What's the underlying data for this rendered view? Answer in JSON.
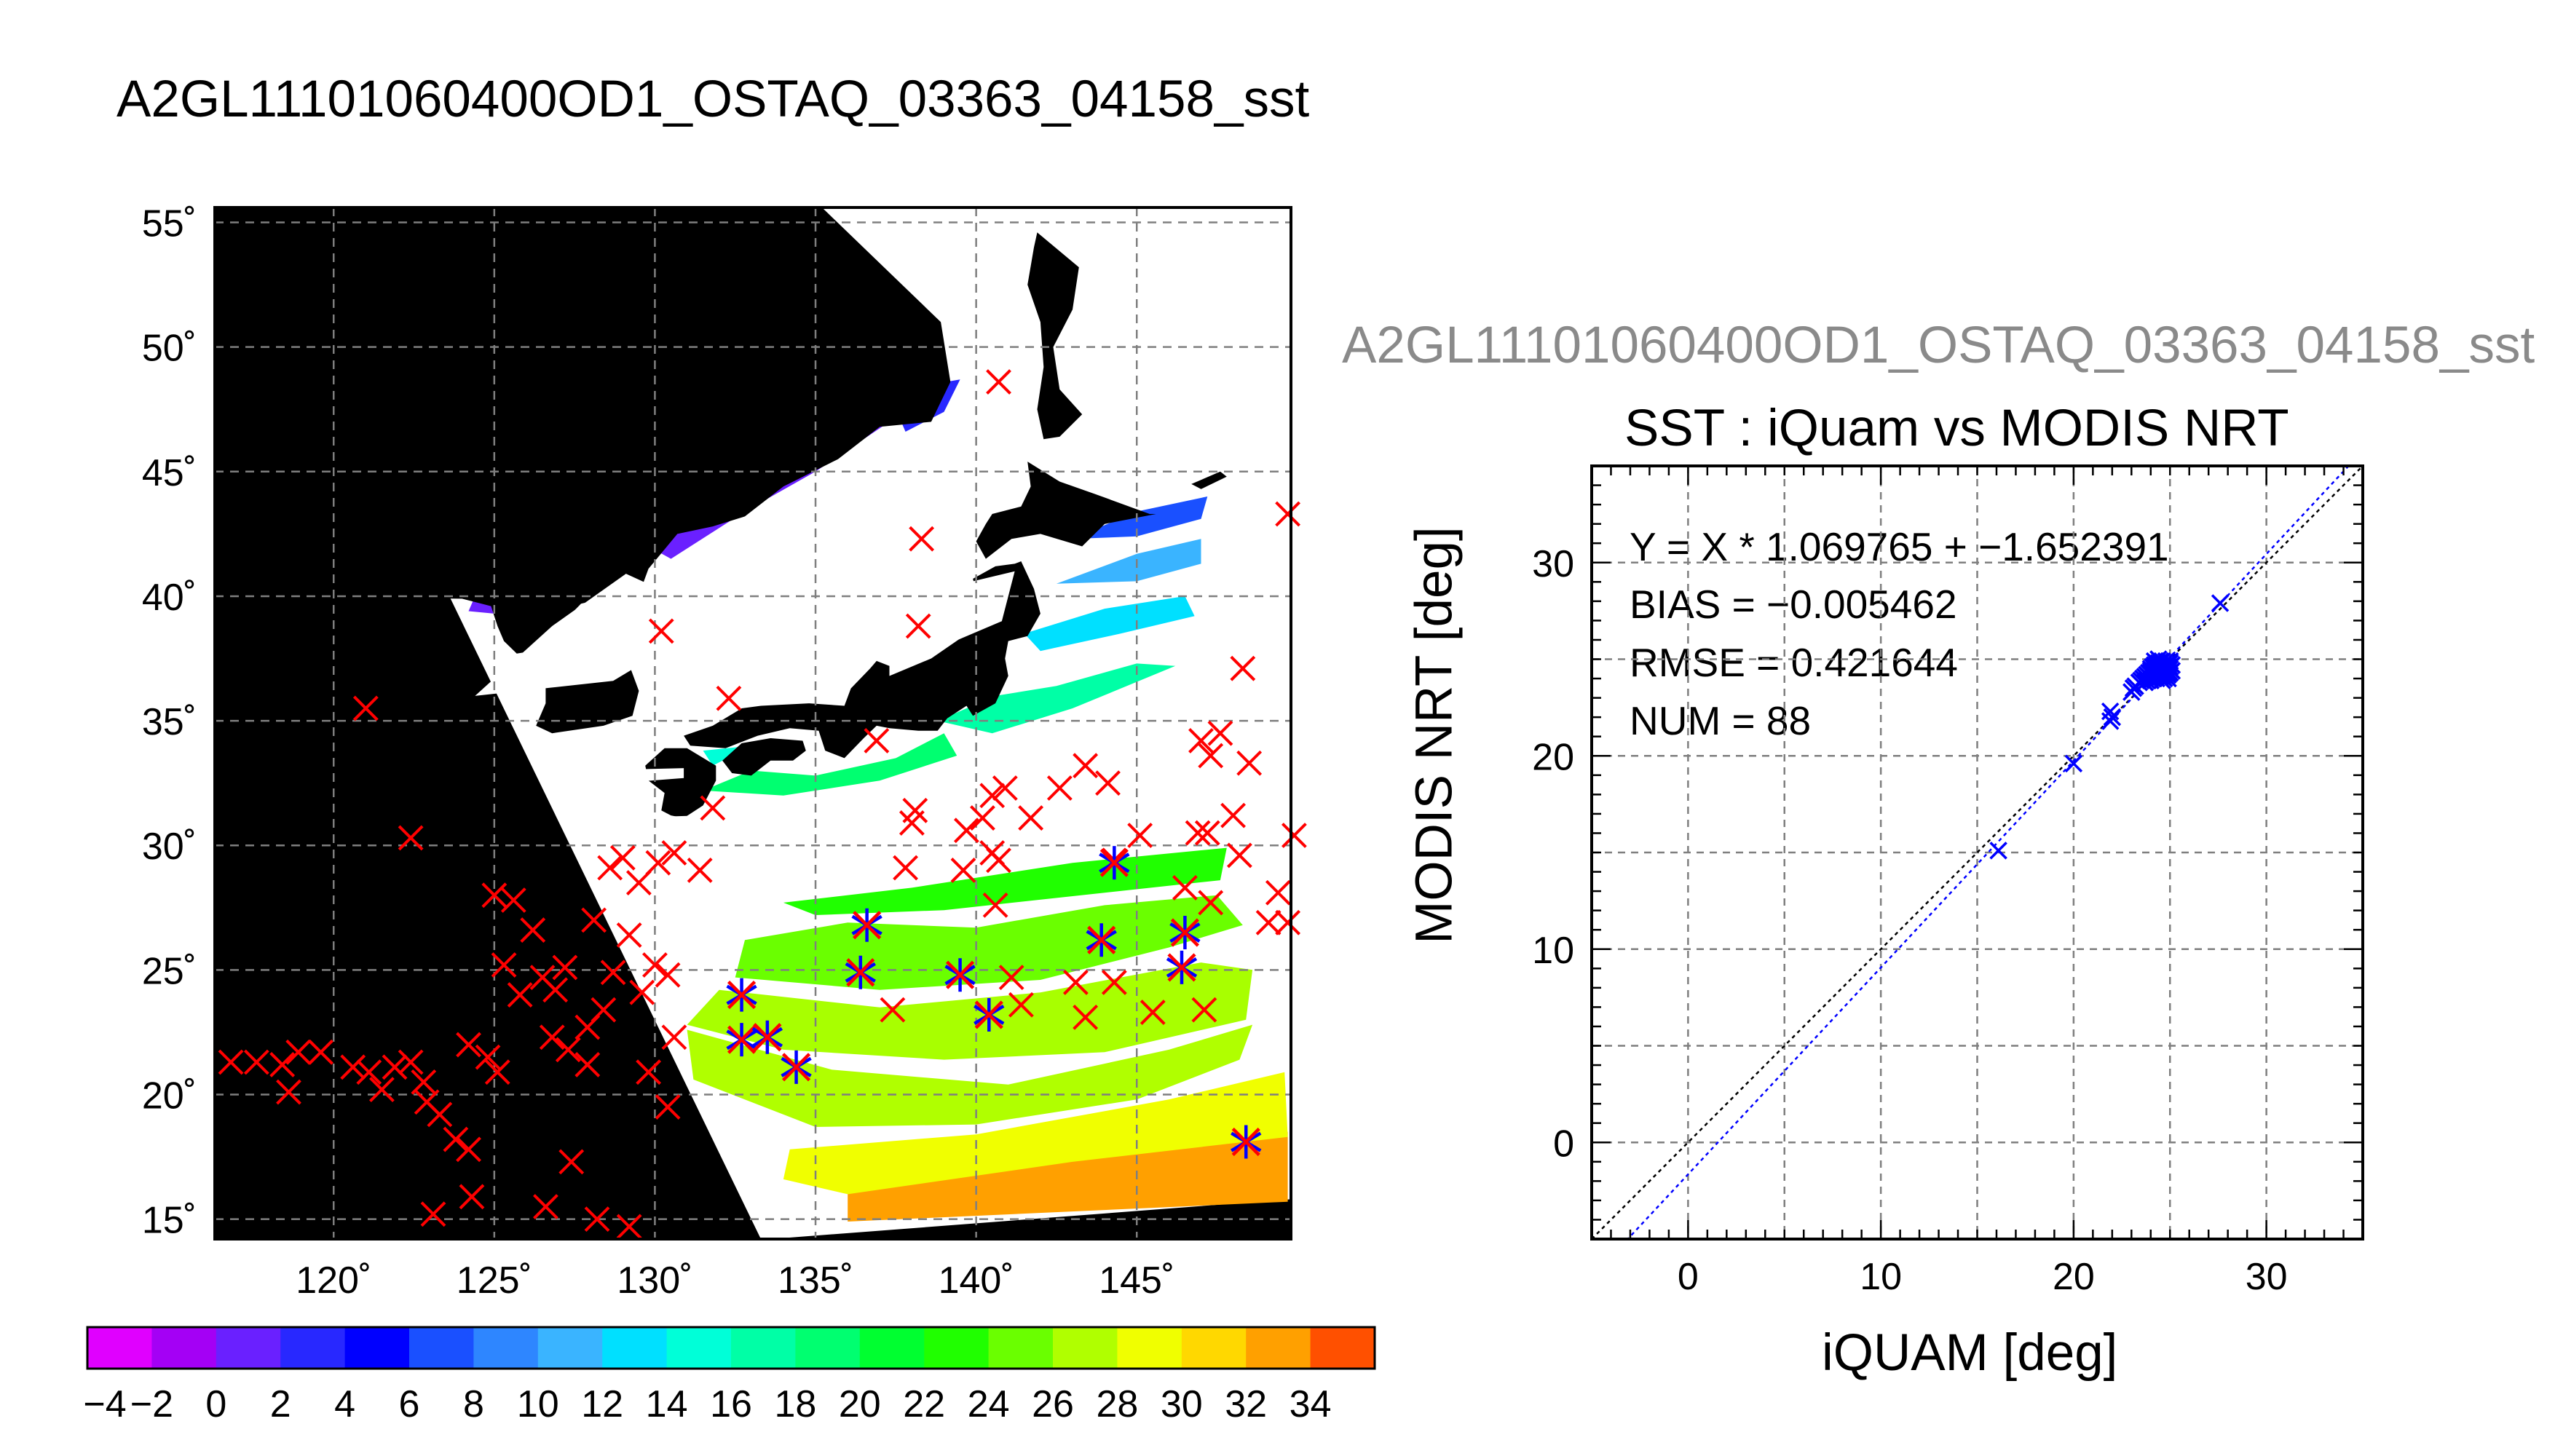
{
  "window": {
    "title": "A2GL11101060400OD1_OSTAQ_03363_04158_sst"
  },
  "colors": {
    "grid": "#7f7f7f",
    "red_marker": "#ff0000",
    "blue_marker": "#0000ff",
    "fit_line": "#0000ff",
    "identity_line": "#000000",
    "header_gray": "#8a8a8a"
  },
  "chart_data": [
    {
      "type": "map",
      "title": "A2GL11101060400OD1_OSTAQ_03363_04158_sst",
      "x_ticks": [
        "120˚",
        "125˚",
        "130˚",
        "135˚",
        "140˚",
        "145˚"
      ],
      "x_tick_values": [
        120,
        125,
        130,
        135,
        140,
        145
      ],
      "y_ticks": [
        "55˚",
        "50˚",
        "45˚",
        "40˚",
        "35˚",
        "30˚",
        "25˚",
        "20˚",
        "15˚"
      ],
      "y_tick_values": [
        55,
        50,
        45,
        40,
        35,
        30,
        25,
        20,
        15
      ],
      "xlim": [
        116.3,
        149.8
      ],
      "ylim": [
        14.2,
        55.6
      ],
      "grid": true,
      "swath_corners_lonlat": [
        [
          135.2,
          55.6
        ],
        [
          149.8,
          55.6
        ],
        [
          149.8,
          15.8
        ],
        [
          133.6,
          14.2
        ],
        [
          133.3,
          14.2
        ],
        [
          123.6,
          40.0
        ],
        [
          124.4,
          40.0
        ]
      ],
      "colorbar": {
        "min": -4,
        "max": 36,
        "step": 2,
        "tick_labels": [
          "−4",
          "−2",
          "0",
          "2",
          "4",
          "6",
          "8",
          "10",
          "12",
          "14",
          "16",
          "18",
          "20",
          "22",
          "24",
          "26",
          "28",
          "30",
          "32",
          "34"
        ],
        "colors": [
          "#e000ff",
          "#a400f5",
          "#6a20ff",
          "#2828ff",
          "#0000ff",
          "#1a50ff",
          "#2e86ff",
          "#3ab4ff",
          "#00e0ff",
          "#00ffd8",
          "#00ffa6",
          "#00ff70",
          "#00ff30",
          "#20ff00",
          "#6aff00",
          "#b0ff00",
          "#f0ff00",
          "#ffd800",
          "#ffa000",
          "#ff5000"
        ]
      },
      "points": {
        "iquam_stations": [
          [
            121.0,
            35.5
          ],
          [
            122.4,
            30.3
          ],
          [
            116.8,
            21.3
          ],
          [
            117.6,
            21.3
          ],
          [
            118.4,
            21.2
          ],
          [
            118.9,
            21.7
          ],
          [
            119.6,
            21.7
          ],
          [
            118.6,
            20.1
          ],
          [
            120.6,
            21.1
          ],
          [
            121.1,
            20.9
          ],
          [
            121.5,
            20.2
          ],
          [
            121.9,
            21.1
          ],
          [
            122.4,
            21.3
          ],
          [
            122.8,
            20.5
          ],
          [
            122.9,
            19.7
          ],
          [
            123.3,
            19.2
          ],
          [
            123.8,
            18.2
          ],
          [
            124.2,
            17.8
          ],
          [
            124.2,
            22.0
          ],
          [
            124.8,
            21.5
          ],
          [
            125.1,
            20.9
          ],
          [
            125.3,
            25.2
          ],
          [
            125.8,
            24.0
          ],
          [
            125.0,
            28.0
          ],
          [
            125.6,
            27.8
          ],
          [
            126.2,
            26.6
          ],
          [
            126.5,
            24.7
          ],
          [
            126.9,
            24.2
          ],
          [
            127.2,
            25.1
          ],
          [
            126.8,
            22.3
          ],
          [
            127.3,
            21.8
          ],
          [
            127.9,
            22.7
          ],
          [
            128.4,
            23.4
          ],
          [
            127.9,
            21.2
          ],
          [
            128.7,
            24.9
          ],
          [
            128.1,
            27.0
          ],
          [
            128.6,
            29.1
          ],
          [
            129.0,
            29.5
          ],
          [
            129.5,
            28.5
          ],
          [
            129.2,
            26.4
          ],
          [
            130.0,
            25.2
          ],
          [
            129.6,
            24.1
          ],
          [
            130.4,
            24.8
          ],
          [
            130.6,
            22.3
          ],
          [
            129.8,
            20.9
          ],
          [
            130.4,
            19.5
          ],
          [
            124.3,
            15.9
          ],
          [
            123.1,
            15.2
          ],
          [
            126.6,
            15.5
          ],
          [
            127.4,
            17.3
          ],
          [
            128.2,
            15.0
          ],
          [
            129.2,
            14.7
          ],
          [
            130.1,
            29.3
          ],
          [
            130.6,
            29.7
          ],
          [
            131.4,
            29.0
          ],
          [
            130.2,
            38.6
          ],
          [
            132.3,
            35.9
          ],
          [
            136.9,
            34.2
          ],
          [
            138.3,
            42.3
          ],
          [
            138.2,
            38.8
          ],
          [
            140.7,
            48.6
          ],
          [
            138.1,
            31.4
          ],
          [
            138.0,
            30.9
          ],
          [
            139.7,
            30.6
          ],
          [
            140.2,
            31.1
          ],
          [
            140.5,
            32.0
          ],
          [
            140.7,
            29.4
          ],
          [
            140.5,
            29.7
          ],
          [
            140.9,
            32.3
          ],
          [
            141.7,
            31.1
          ],
          [
            142.6,
            32.3
          ],
          [
            143.4,
            33.2
          ],
          [
            144.1,
            32.5
          ],
          [
            144.3,
            29.4
          ],
          [
            145.1,
            30.4
          ],
          [
            146.5,
            28.3
          ],
          [
            146.9,
            30.5
          ],
          [
            147.0,
            34.2
          ],
          [
            147.3,
            33.6
          ],
          [
            147.6,
            34.5
          ],
          [
            147.2,
            30.5
          ],
          [
            148.5,
            33.3
          ],
          [
            148.0,
            31.2
          ],
          [
            148.2,
            29.6
          ],
          [
            149.4,
            28.1
          ],
          [
            149.1,
            26.9
          ],
          [
            149.7,
            26.9
          ],
          [
            149.9,
            30.4
          ],
          [
            149.7,
            43.3
          ],
          [
            148.3,
            37.1
          ],
          [
            143.1,
            24.5
          ],
          [
            143.4,
            23.1
          ],
          [
            144.3,
            24.5
          ],
          [
            145.5,
            23.3
          ],
          [
            147.1,
            23.4
          ],
          [
            147.3,
            27.7
          ],
          [
            141.1,
            24.7
          ],
          [
            140.6,
            27.6
          ],
          [
            137.4,
            23.4
          ],
          [
            131.8,
            31.5
          ],
          [
            141.4,
            23.6
          ],
          [
            137.8,
            29.1
          ],
          [
            139.6,
            29.0
          ]
        ],
        "matched_pairs": [
          [
            132.7,
            24.0
          ],
          [
            132.7,
            22.2
          ],
          [
            133.5,
            22.3
          ],
          [
            134.4,
            21.1
          ],
          [
            136.4,
            24.9
          ],
          [
            136.6,
            26.8
          ],
          [
            139.5,
            24.8
          ],
          [
            140.4,
            23.2
          ],
          [
            143.9,
            26.2
          ],
          [
            144.3,
            29.3
          ],
          [
            146.5,
            26.5
          ],
          [
            146.4,
            25.1
          ],
          [
            148.4,
            18.1
          ]
        ]
      }
    },
    {
      "type": "scatter",
      "header": "A2GL11101060400OD1_OSTAQ_03363_04158_sst",
      "title": "SST : iQuam vs MODIS NRT",
      "xlabel": "iQUAM [deg]",
      "ylabel": "MODIS NRT [deg]",
      "xlim": [
        -5,
        35
      ],
      "ylim": [
        -5,
        35
      ],
      "x_ticks": [
        "0",
        "10",
        "20",
        "30"
      ],
      "x_tick_values": [
        0,
        10,
        20,
        30
      ],
      "y_ticks": [
        "0",
        "10",
        "20",
        "30"
      ],
      "y_tick_values": [
        0,
        10,
        20,
        30
      ],
      "grid": true,
      "stats": {
        "regression": "Y = X * 1.069765 + −1.652391",
        "bias": "BIAS = −0.005462",
        "rmse": "RMSE = 0.421644",
        "num": "NUM = 88"
      },
      "fit": {
        "slope": 1.069765,
        "intercept": -1.652391
      },
      "identity_line": {
        "slope": 1,
        "intercept": 0
      },
      "series": [
        {
          "x": [
            16.1,
            20.0,
            21.9,
            22.0,
            21.9,
            23.0,
            23.1,
            23.2,
            23.4,
            23.5,
            23.6,
            23.7,
            23.8,
            23.9,
            24.0,
            24.0,
            24.1,
            24.1,
            24.2,
            24.2,
            24.3,
            24.3,
            24.4,
            24.4,
            24.5,
            24.5,
            24.5,
            24.6,
            24.6,
            24.6,
            24.7,
            24.7,
            24.7,
            24.8,
            24.8,
            24.8,
            24.9,
            24.9,
            24.9,
            25.0,
            25.0,
            25.0,
            25.1,
            25.1,
            24.3,
            24.4,
            24.6,
            24.7,
            24.8,
            24.9,
            24.2,
            24.5,
            24.6,
            24.8,
            27.6,
            24.9,
            24.7,
            24.5,
            24.3,
            24.1,
            23.9,
            23.6,
            24.2,
            24.4,
            24.6,
            24.8,
            25.0,
            24.6,
            24.4,
            24.2,
            24.0,
            23.8,
            24.5,
            24.7,
            24.9,
            24.3,
            24.1,
            23.7,
            24.6,
            24.8,
            24.0,
            24.4,
            24.2,
            25.0,
            24.6,
            24.7,
            24.5,
            24.9
          ],
          "y": [
            15.1,
            19.6,
            21.8,
            22.0,
            22.3,
            23.3,
            23.5,
            23.6,
            23.8,
            23.9,
            24.0,
            24.1,
            24.2,
            24.3,
            24.3,
            24.5,
            24.4,
            24.6,
            24.3,
            24.6,
            24.2,
            24.7,
            24.3,
            24.8,
            24.1,
            24.5,
            24.9,
            24.2,
            24.6,
            24.9,
            24.3,
            24.6,
            24.8,
            24.1,
            24.5,
            24.9,
            24.2,
            24.6,
            24.8,
            24.3,
            24.5,
            24.9,
            24.4,
            24.7,
            24.0,
            25.0,
            23.9,
            24.2,
            24.4,
            24.0,
            24.5,
            24.8,
            24.4,
            24.7,
            27.9,
            24.2,
            24.0,
            24.4,
            24.8,
            24.3,
            24.1,
            24.0,
            24.9,
            24.5,
            24.7,
            24.3,
            24.6,
            24.4,
            24.2,
            24.4,
            23.9,
            23.9,
            24.3,
            24.5,
            24.4,
            24.5,
            24.0,
            23.8,
            24.1,
            24.6,
            24.4,
            24.3,
            24.7,
            24.8,
            24.5,
            24.2,
            24.6,
            24.3
          ]
        }
      ]
    }
  ]
}
